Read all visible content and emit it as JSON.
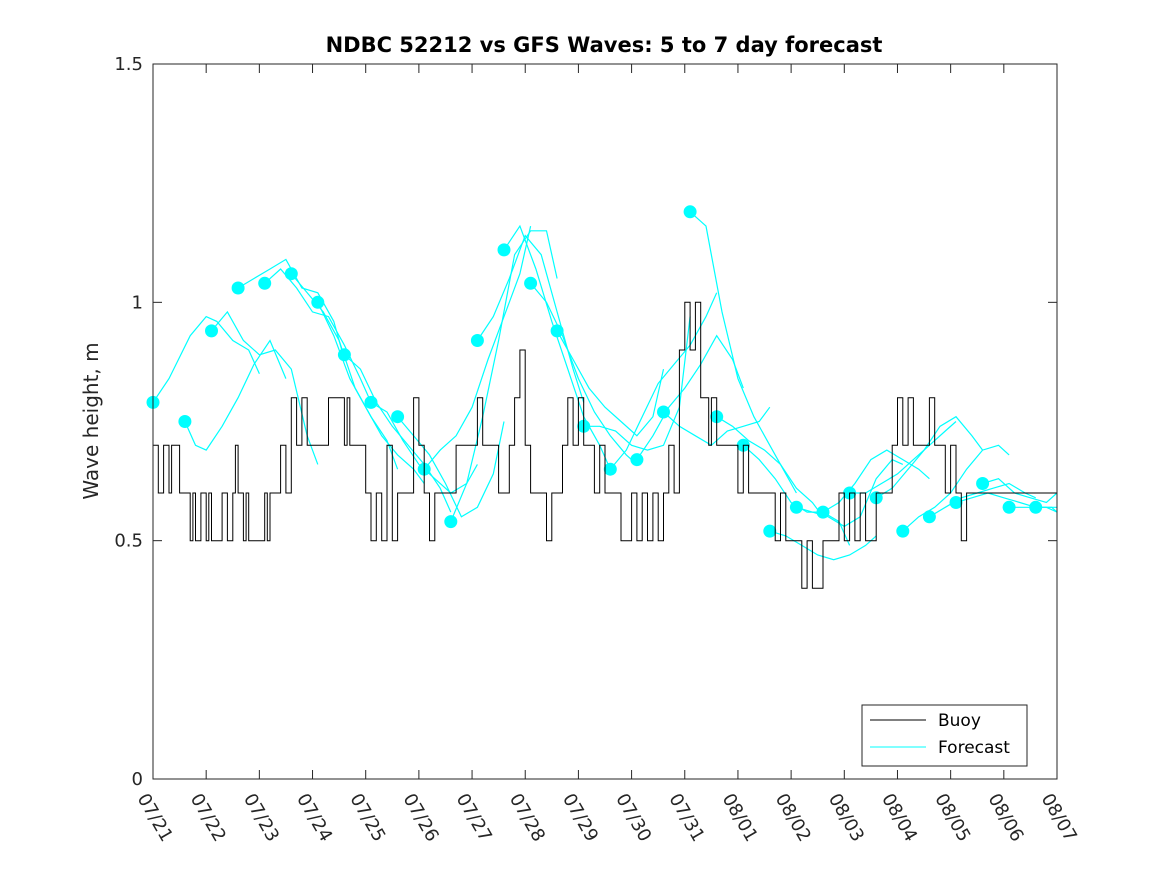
{
  "chart_data": {
    "type": "line",
    "title": "NDBC 52212 vs GFS Waves: 5 to 7 day forecast",
    "ylabel": "Wave height, m",
    "xlabel": "",
    "ylim": [
      0,
      1.5
    ],
    "yticks": [
      0,
      0.5,
      1,
      1.5
    ],
    "ytick_labels": [
      "0",
      "0.5",
      "1",
      "1.5"
    ],
    "xlim": [
      0,
      17
    ],
    "xticks": [
      0,
      1,
      2,
      3,
      4,
      5,
      6,
      7,
      8,
      9,
      10,
      11,
      12,
      13,
      14,
      15,
      16,
      17
    ],
    "xtick_labels": [
      "07/21",
      "07/22",
      "07/23",
      "07/24",
      "07/25",
      "07/26",
      "07/27",
      "07/28",
      "07/29",
      "07/30",
      "07/31",
      "08/01",
      "08/02",
      "08/03",
      "08/04",
      "08/05",
      "08/06",
      "08/07"
    ],
    "grid": false,
    "legend_position": "bottom-right",
    "legend": [
      "Buoy",
      "Forecast"
    ],
    "colors": {
      "buoy": "#000000",
      "forecast": "#00ffff",
      "axis": "#262626"
    },
    "buoy": {
      "name": "Buoy",
      "x": [
        0,
        0.1,
        0.2,
        0.3,
        0.35,
        0.5,
        0.6,
        0.7,
        0.75,
        0.8,
        0.9,
        1.0,
        1.05,
        1.1,
        1.2,
        1.3,
        1.4,
        1.5,
        1.55,
        1.6,
        1.7,
        1.75,
        1.8,
        1.9,
        2.0,
        2.1,
        2.15,
        2.2,
        2.3,
        2.4,
        2.5,
        2.6,
        2.7,
        2.8,
        2.9,
        3.0,
        3.1,
        3.2,
        3.3,
        3.4,
        3.5,
        3.6,
        3.65,
        3.7,
        3.8,
        3.9,
        4.0,
        4.1,
        4.2,
        4.3,
        4.4,
        4.5,
        4.6,
        4.7,
        4.8,
        4.9,
        5.0,
        5.1,
        5.2,
        5.3,
        5.4,
        5.5,
        5.6,
        5.7,
        5.8,
        5.9,
        6.0,
        6.1,
        6.2,
        6.3,
        6.4,
        6.5,
        6.6,
        6.7,
        6.8,
        6.9,
        7.0,
        7.1,
        7.2,
        7.3,
        7.4,
        7.5,
        7.6,
        7.7,
        7.8,
        7.9,
        8.0,
        8.1,
        8.2,
        8.3,
        8.4,
        8.5,
        8.6,
        8.7,
        8.8,
        8.9,
        9.0,
        9.1,
        9.2,
        9.3,
        9.4,
        9.5,
        9.6,
        9.7,
        9.8,
        9.9,
        10.0,
        10.1,
        10.2,
        10.3,
        10.4,
        10.45,
        10.5,
        10.6,
        10.7,
        10.8,
        10.9,
        11.0,
        11.1,
        11.2,
        11.3,
        11.4,
        11.5,
        11.6,
        11.7,
        11.8,
        11.9,
        12.0,
        12.1,
        12.2,
        12.3,
        12.4,
        12.5,
        12.6,
        12.7,
        12.8,
        12.9,
        13.0,
        13.1,
        13.2,
        13.3,
        13.4,
        13.5,
        13.6,
        13.7,
        13.8,
        13.9,
        14.0,
        14.1,
        14.2,
        14.3,
        14.4,
        14.5,
        14.6,
        14.7,
        14.8,
        14.9,
        15.0,
        15.1,
        15.2,
        15.3,
        15.4,
        15.5,
        15.6,
        15.7,
        15.8,
        15.9,
        16.0,
        16.1,
        16.2,
        16.3,
        16.4,
        16.5,
        16.6,
        16.7,
        16.8,
        16.9,
        17.0
      ],
      "y": [
        0.7,
        0.6,
        0.7,
        0.6,
        0.7,
        0.6,
        0.6,
        0.5,
        0.6,
        0.5,
        0.6,
        0.5,
        0.6,
        0.5,
        0.5,
        0.6,
        0.5,
        0.6,
        0.7,
        0.6,
        0.5,
        0.6,
        0.5,
        0.5,
        0.5,
        0.6,
        0.5,
        0.6,
        0.6,
        0.7,
        0.6,
        0.8,
        0.7,
        0.8,
        0.7,
        0.7,
        0.7,
        0.7,
        0.8,
        0.8,
        0.8,
        0.7,
        0.8,
        0.7,
        0.7,
        0.7,
        0.6,
        0.5,
        0.6,
        0.5,
        0.7,
        0.5,
        0.6,
        0.6,
        0.6,
        0.8,
        0.7,
        0.6,
        0.5,
        0.6,
        0.6,
        0.6,
        0.6,
        0.7,
        0.7,
        0.7,
        0.7,
        0.8,
        0.7,
        0.7,
        0.7,
        0.6,
        0.6,
        0.7,
        0.8,
        0.9,
        0.7,
        0.6,
        0.6,
        0.6,
        0.5,
        0.6,
        0.6,
        0.7,
        0.8,
        0.7,
        0.8,
        0.7,
        0.7,
        0.6,
        0.7,
        0.6,
        0.6,
        0.6,
        0.5,
        0.5,
        0.6,
        0.5,
        0.6,
        0.5,
        0.6,
        0.5,
        0.6,
        0.7,
        0.6,
        0.9,
        1.0,
        0.9,
        1.0,
        0.8,
        0.8,
        0.7,
        0.8,
        0.7,
        0.7,
        0.7,
        0.7,
        0.6,
        0.7,
        0.6,
        0.6,
        0.6,
        0.6,
        0.6,
        0.5,
        0.6,
        0.5,
        0.5,
        0.5,
        0.4,
        0.5,
        0.4,
        0.4,
        0.5,
        0.5,
        0.5,
        0.6,
        0.5,
        0.6,
        0.5,
        0.6,
        0.5,
        0.5,
        0.6,
        0.6,
        0.6,
        0.7,
        0.8,
        0.7,
        0.8,
        0.7,
        0.7,
        0.7,
        0.8,
        0.7,
        0.7,
        0.6,
        0.7,
        0.6,
        0.5,
        0.6,
        0.6,
        0.6,
        0.6,
        0.6,
        0.6,
        0.6,
        0.6,
        0.6,
        0.6,
        0.6,
        0.6,
        0.6,
        0.6,
        0.6,
        0.6,
        0.6,
        0.6
      ]
    },
    "forecast_series": [
      {
        "x": [
          0,
          0.3,
          0.7,
          1.0,
          1.2,
          1.5,
          1.8,
          2.0
        ],
        "y": [
          0.79,
          0.84,
          0.93,
          0.97,
          0.96,
          0.92,
          0.9,
          0.85
        ]
      },
      {
        "x": [
          0.6,
          0.8,
          1.0,
          1.3,
          1.6,
          1.9,
          2.2,
          2.5
        ],
        "y": [
          0.75,
          0.7,
          0.69,
          0.74,
          0.8,
          0.87,
          0.92,
          0.84
        ]
      },
      {
        "x": [
          1.1,
          1.4,
          1.7,
          2.0,
          2.3,
          2.6,
          2.9,
          3.1
        ],
        "y": [
          0.94,
          0.98,
          0.92,
          0.89,
          0.9,
          0.86,
          0.72,
          0.66
        ]
      },
      {
        "x": [
          1.6,
          1.9,
          2.2,
          2.5,
          2.8,
          3.1,
          3.4,
          3.6
        ],
        "y": [
          1.03,
          1.05,
          1.07,
          1.09,
          1.03,
          1.02,
          0.96,
          0.88
        ]
      },
      {
        "x": [
          2.1,
          2.4,
          2.7,
          3.0,
          3.3,
          3.6,
          3.9,
          4.1
        ],
        "y": [
          1.04,
          1.07,
          1.03,
          0.98,
          0.97,
          0.91,
          0.84,
          0.79
        ]
      },
      {
        "x": [
          2.6,
          2.9,
          3.2,
          3.5,
          3.8,
          4.1,
          4.4,
          4.6
        ],
        "y": [
          1.06,
          1.02,
          0.98,
          0.92,
          0.82,
          0.76,
          0.71,
          0.65
        ]
      },
      {
        "x": [
          3.1,
          3.4,
          3.7,
          4.0,
          4.3,
          4.6,
          4.9,
          5.1
        ],
        "y": [
          1.0,
          0.93,
          0.84,
          0.78,
          0.72,
          0.68,
          0.65,
          0.62
        ]
      },
      {
        "x": [
          3.6,
          3.9,
          4.2,
          4.5,
          4.8,
          5.1,
          5.4,
          5.6
        ],
        "y": [
          0.89,
          0.86,
          0.79,
          0.74,
          0.7,
          0.66,
          0.61,
          0.56
        ]
      },
      {
        "x": [
          4.1,
          4.4,
          4.7,
          5.0,
          5.3,
          5.6,
          5.9,
          6.1
        ],
        "y": [
          0.79,
          0.77,
          0.71,
          0.66,
          0.63,
          0.6,
          0.62,
          0.66
        ]
      },
      {
        "x": [
          4.6,
          4.9,
          5.2,
          5.5,
          5.8,
          6.1,
          6.4,
          6.6
        ],
        "y": [
          0.76,
          0.72,
          0.68,
          0.62,
          0.55,
          0.57,
          0.64,
          0.75
        ]
      },
      {
        "x": [
          5.1,
          5.4,
          5.7,
          6.0,
          6.3,
          6.6,
          6.9,
          7.1
        ],
        "y": [
          0.65,
          0.69,
          0.72,
          0.78,
          0.88,
          0.97,
          1.06,
          1.16
        ]
      },
      {
        "x": [
          5.6,
          5.9,
          6.2,
          6.5,
          6.8,
          7.1,
          7.4,
          7.6
        ],
        "y": [
          0.54,
          0.62,
          0.76,
          0.92,
          1.1,
          1.15,
          1.15,
          1.05
        ]
      },
      {
        "x": [
          6.1,
          6.4,
          6.7,
          7.0,
          7.3,
          7.6,
          7.9,
          8.1
        ],
        "y": [
          0.92,
          0.97,
          1.05,
          1.14,
          1.1,
          0.98,
          0.86,
          0.79
        ]
      },
      {
        "x": [
          6.6,
          6.9,
          7.2,
          7.5,
          7.8,
          8.1,
          8.4,
          8.6
        ],
        "y": [
          1.11,
          1.16,
          1.07,
          0.96,
          0.86,
          0.76,
          0.7,
          0.65
        ]
      },
      {
        "x": [
          7.1,
          7.4,
          7.7,
          8.0,
          8.3,
          8.6,
          8.9,
          9.1
        ],
        "y": [
          1.04,
          1.0,
          0.93,
          0.84,
          0.77,
          0.72,
          0.68,
          0.66
        ]
      },
      {
        "x": [
          7.6,
          7.9,
          8.2,
          8.5,
          8.8,
          9.1,
          9.4,
          9.6
        ],
        "y": [
          0.94,
          0.88,
          0.82,
          0.78,
          0.75,
          0.72,
          0.76,
          0.86
        ]
      },
      {
        "x": [
          8.1,
          8.4,
          8.7,
          9.0,
          9.3,
          9.6,
          9.9,
          10.1
        ],
        "y": [
          0.74,
          0.74,
          0.73,
          0.7,
          0.69,
          0.7,
          0.78,
          0.97
        ]
      },
      {
        "x": [
          8.6,
          8.9,
          9.2,
          9.5,
          9.8,
          10.1,
          10.4,
          10.6
        ],
        "y": [
          0.65,
          0.69,
          0.76,
          0.83,
          0.87,
          0.91,
          0.97,
          1.02
        ]
      },
      {
        "x": [
          9.1,
          9.4,
          9.7,
          10.0,
          10.3,
          10.6,
          10.9,
          11.1
        ],
        "y": [
          0.67,
          0.72,
          0.78,
          0.82,
          0.87,
          0.93,
          0.88,
          0.82
        ]
      },
      {
        "x": [
          9.6,
          9.9,
          10.2,
          10.5,
          10.8,
          11.1,
          11.4,
          11.6
        ],
        "y": [
          0.77,
          0.74,
          0.72,
          0.7,
          0.73,
          0.74,
          0.75,
          0.78
        ]
      },
      {
        "x": [
          10.1,
          10.4,
          10.7,
          11.0,
          11.3,
          11.6,
          11.9,
          12.1
        ],
        "y": [
          1.19,
          1.16,
          0.98,
          0.84,
          0.76,
          0.7,
          0.64,
          0.6
        ]
      },
      {
        "x": [
          10.6,
          10.9,
          11.2,
          11.5,
          11.8,
          12.1,
          12.4,
          12.6
        ],
        "y": [
          0.76,
          0.74,
          0.71,
          0.69,
          0.66,
          0.61,
          0.58,
          0.55
        ]
      },
      {
        "x": [
          11.1,
          11.4,
          11.7,
          12.0,
          12.3,
          12.6,
          12.9,
          13.1
        ],
        "y": [
          0.7,
          0.67,
          0.63,
          0.58,
          0.56,
          0.56,
          0.54,
          0.49
        ]
      },
      {
        "x": [
          11.6,
          11.9,
          12.2,
          12.5,
          12.8,
          13.1,
          13.4,
          13.6
        ],
        "y": [
          0.52,
          0.51,
          0.49,
          0.47,
          0.46,
          0.47,
          0.49,
          0.51
        ]
      },
      {
        "x": [
          12.1,
          12.4,
          12.7,
          13.0,
          13.3,
          13.6,
          13.9,
          14.1
        ],
        "y": [
          0.57,
          0.56,
          0.55,
          0.53,
          0.55,
          0.63,
          0.67,
          0.66
        ]
      },
      {
        "x": [
          12.6,
          12.9,
          13.2,
          13.5,
          13.8,
          14.1,
          14.4,
          14.6
        ],
        "y": [
          0.56,
          0.58,
          0.62,
          0.67,
          0.69,
          0.67,
          0.65,
          0.63
        ]
      },
      {
        "x": [
          13.1,
          13.4,
          13.7,
          14.0,
          14.3,
          14.6,
          14.9,
          15.1
        ],
        "y": [
          0.6,
          0.6,
          0.62,
          0.64,
          0.67,
          0.7,
          0.73,
          0.75
        ]
      },
      {
        "x": [
          13.6,
          13.9,
          14.2,
          14.5,
          14.8,
          15.1,
          15.4,
          15.6
        ],
        "y": [
          0.59,
          0.61,
          0.65,
          0.69,
          0.74,
          0.76,
          0.72,
          0.69
        ]
      },
      {
        "x": [
          14.1,
          14.4,
          14.7,
          15.0,
          15.3,
          15.6,
          15.9,
          16.1
        ],
        "y": [
          0.52,
          0.55,
          0.57,
          0.6,
          0.65,
          0.69,
          0.7,
          0.68
        ]
      },
      {
        "x": [
          14.6,
          14.9,
          15.2,
          15.5,
          15.8,
          16.1,
          16.4,
          16.6
        ],
        "y": [
          0.55,
          0.57,
          0.59,
          0.6,
          0.61,
          0.62,
          0.6,
          0.59
        ]
      },
      {
        "x": [
          15.1,
          15.4,
          15.7,
          16.0,
          16.3,
          16.6,
          16.9,
          17.0
        ],
        "y": [
          0.58,
          0.59,
          0.6,
          0.59,
          0.58,
          0.57,
          0.57,
          0.56
        ]
      },
      {
        "x": [
          15.6,
          15.9,
          16.2,
          16.5,
          16.8,
          17.0
        ],
        "y": [
          0.62,
          0.63,
          0.6,
          0.59,
          0.58,
          0.6
        ]
      },
      {
        "x": [
          16.1,
          16.4,
          16.7,
          17.0
        ],
        "y": [
          0.57,
          0.57,
          0.57,
          0.57
        ]
      },
      {
        "x": [
          16.6,
          16.8,
          17.0
        ],
        "y": [
          0.57,
          0.57,
          0.56
        ]
      }
    ]
  }
}
